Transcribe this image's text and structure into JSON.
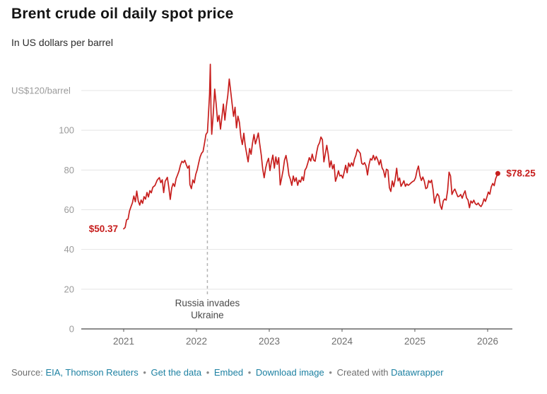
{
  "header": {
    "title": "Brent crude oil daily spot price",
    "subtitle": "In US dollars per barrel"
  },
  "colors": {
    "line": "#c71e1d",
    "link": "#1d81a2",
    "grid": "#e4e4e4",
    "axis": "#1a1a1a",
    "tick_label": "#9a9a9a",
    "year_label": "#6f6f6f",
    "annotation_text": "#4a4a4a"
  },
  "footer": {
    "source_prefix": "Source:",
    "source_link": "EIA, Thomson Reuters",
    "bullet": "•",
    "get_data": "Get the data",
    "embed": "Embed",
    "download": "Download image",
    "created_with": "Created with",
    "datawrapper": "Datawrapper"
  },
  "chart_data": {
    "type": "line",
    "title": "Brent crude oil daily spot price",
    "subtitle": "In US dollars per barrel",
    "xlabel": "",
    "ylabel": "US dollars per barrel",
    "ylim": [
      0,
      128
    ],
    "x_ticks": [
      2021,
      2022,
      2023,
      2024,
      2025,
      2026
    ],
    "y_ticks": [
      0,
      20,
      40,
      60,
      80,
      100
    ],
    "y_top_value": 120,
    "y_top_label": "US$120/barrel",
    "grid": true,
    "legend_position": "none",
    "start_label": "$50.37",
    "start_value": 50.37,
    "end_label": "$78.25",
    "end_value": 78.25,
    "annotation": {
      "x": 2022.15,
      "text": "Russia invades Ukraine",
      "line1": "Russia invades",
      "line2": "Ukraine"
    },
    "series": [
      {
        "name": "Brent crude daily spot price",
        "color": "#c71e1d",
        "points": [
          [
            2021.0,
            50.4
          ],
          [
            2021.02,
            51.1
          ],
          [
            2021.04,
            54.9
          ],
          [
            2021.06,
            55.3
          ],
          [
            2021.08,
            59.3
          ],
          [
            2021.1,
            61.5
          ],
          [
            2021.12,
            63.5
          ],
          [
            2021.14,
            66.9
          ],
          [
            2021.16,
            64.0
          ],
          [
            2021.18,
            69.4
          ],
          [
            2021.2,
            64.5
          ],
          [
            2021.22,
            62.3
          ],
          [
            2021.24,
            64.9
          ],
          [
            2021.26,
            63.2
          ],
          [
            2021.28,
            66.6
          ],
          [
            2021.3,
            65.3
          ],
          [
            2021.32,
            68.7
          ],
          [
            2021.34,
            66.4
          ],
          [
            2021.36,
            69.6
          ],
          [
            2021.38,
            68.5
          ],
          [
            2021.4,
            71.3
          ],
          [
            2021.43,
            72.2
          ],
          [
            2021.46,
            74.9
          ],
          [
            2021.49,
            76.2
          ],
          [
            2021.51,
            73.6
          ],
          [
            2021.53,
            75.1
          ],
          [
            2021.55,
            68.6
          ],
          [
            2021.57,
            74.3
          ],
          [
            2021.6,
            76.3
          ],
          [
            2021.62,
            71.1
          ],
          [
            2021.64,
            65.2
          ],
          [
            2021.66,
            71.0
          ],
          [
            2021.68,
            73.2
          ],
          [
            2021.7,
            71.7
          ],
          [
            2021.72,
            75.7
          ],
          [
            2021.74,
            77.5
          ],
          [
            2021.76,
            79.5
          ],
          [
            2021.78,
            82.4
          ],
          [
            2021.8,
            84.4
          ],
          [
            2021.82,
            83.7
          ],
          [
            2021.84,
            84.9
          ],
          [
            2021.86,
            82.7
          ],
          [
            2021.88,
            80.9
          ],
          [
            2021.9,
            82.2
          ],
          [
            2021.91,
            72.7
          ],
          [
            2021.93,
            70.6
          ],
          [
            2021.95,
            75.0
          ],
          [
            2021.97,
            73.5
          ],
          [
            2021.99,
            77.8
          ],
          [
            2022.01,
            80.0
          ],
          [
            2022.03,
            83.5
          ],
          [
            2022.05,
            86.5
          ],
          [
            2022.07,
            88.4
          ],
          [
            2022.09,
            89.3
          ],
          [
            2022.11,
            93.3
          ],
          [
            2022.13,
            97.9
          ],
          [
            2022.15,
            99.0
          ],
          [
            2022.16,
            105.0
          ],
          [
            2022.18,
            118.1
          ],
          [
            2022.19,
            133.2
          ],
          [
            2022.2,
            109.3
          ],
          [
            2022.21,
            98.0
          ],
          [
            2022.23,
            107.9
          ],
          [
            2022.25,
            120.7
          ],
          [
            2022.27,
            113.5
          ],
          [
            2022.29,
            104.4
          ],
          [
            2022.31,
            107.5
          ],
          [
            2022.33,
            100.6
          ],
          [
            2022.35,
            106.6
          ],
          [
            2022.37,
            113.2
          ],
          [
            2022.39,
            105.1
          ],
          [
            2022.41,
            112.0
          ],
          [
            2022.43,
            117.4
          ],
          [
            2022.45,
            125.8
          ],
          [
            2022.47,
            119.7
          ],
          [
            2022.49,
            113.1
          ],
          [
            2022.51,
            107.0
          ],
          [
            2022.53,
            111.6
          ],
          [
            2022.55,
            101.2
          ],
          [
            2022.57,
            107.1
          ],
          [
            2022.59,
            103.9
          ],
          [
            2022.61,
            96.7
          ],
          [
            2022.63,
            92.8
          ],
          [
            2022.65,
            98.5
          ],
          [
            2022.67,
            92.4
          ],
          [
            2022.69,
            88.0
          ],
          [
            2022.71,
            84.1
          ],
          [
            2022.73,
            90.8
          ],
          [
            2022.75,
            87.9
          ],
          [
            2022.77,
            93.5
          ],
          [
            2022.79,
            97.9
          ],
          [
            2022.81,
            93.1
          ],
          [
            2022.83,
            95.8
          ],
          [
            2022.85,
            98.6
          ],
          [
            2022.87,
            92.9
          ],
          [
            2022.89,
            87.5
          ],
          [
            2022.91,
            80.6
          ],
          [
            2022.93,
            76.1
          ],
          [
            2022.95,
            81.0
          ],
          [
            2022.97,
            83.9
          ],
          [
            2022.99,
            85.9
          ],
          [
            2023.01,
            79.7
          ],
          [
            2023.03,
            84.3
          ],
          [
            2023.05,
            87.5
          ],
          [
            2023.07,
            80.9
          ],
          [
            2023.09,
            86.6
          ],
          [
            2023.11,
            82.8
          ],
          [
            2023.13,
            86.2
          ],
          [
            2023.15,
            72.5
          ],
          [
            2023.17,
            75.9
          ],
          [
            2023.19,
            79.9
          ],
          [
            2023.21,
            85.0
          ],
          [
            2023.23,
            87.3
          ],
          [
            2023.25,
            83.1
          ],
          [
            2023.27,
            77.5
          ],
          [
            2023.29,
            75.3
          ],
          [
            2023.31,
            72.3
          ],
          [
            2023.33,
            77.0
          ],
          [
            2023.35,
            74.2
          ],
          [
            2023.37,
            76.1
          ],
          [
            2023.39,
            72.3
          ],
          [
            2023.41,
            74.9
          ],
          [
            2023.43,
            73.9
          ],
          [
            2023.45,
            76.6
          ],
          [
            2023.47,
            74.7
          ],
          [
            2023.49,
            79.9
          ],
          [
            2023.51,
            81.1
          ],
          [
            2023.53,
            83.6
          ],
          [
            2023.55,
            86.2
          ],
          [
            2023.57,
            84.5
          ],
          [
            2023.59,
            88.0
          ],
          [
            2023.61,
            85.0
          ],
          [
            2023.63,
            84.4
          ],
          [
            2023.65,
            88.8
          ],
          [
            2023.67,
            92.2
          ],
          [
            2023.69,
            93.7
          ],
          [
            2023.71,
            96.6
          ],
          [
            2023.73,
            95.3
          ],
          [
            2023.75,
            84.1
          ],
          [
            2023.77,
            88.1
          ],
          [
            2023.79,
            92.4
          ],
          [
            2023.81,
            87.9
          ],
          [
            2023.83,
            81.4
          ],
          [
            2023.85,
            84.6
          ],
          [
            2023.87,
            80.6
          ],
          [
            2023.89,
            82.8
          ],
          [
            2023.91,
            74.3
          ],
          [
            2023.93,
            76.6
          ],
          [
            2023.95,
            79.6
          ],
          [
            2023.97,
            77.0
          ],
          [
            2023.99,
            77.4
          ],
          [
            2024.01,
            75.9
          ],
          [
            2024.03,
            79.1
          ],
          [
            2024.05,
            82.4
          ],
          [
            2024.07,
            78.6
          ],
          [
            2024.09,
            83.5
          ],
          [
            2024.11,
            81.6
          ],
          [
            2024.13,
            83.6
          ],
          [
            2024.15,
            82.0
          ],
          [
            2024.17,
            85.4
          ],
          [
            2024.19,
            87.4
          ],
          [
            2024.21,
            90.4
          ],
          [
            2024.23,
            89.4
          ],
          [
            2024.25,
            88.4
          ],
          [
            2024.27,
            83.4
          ],
          [
            2024.29,
            82.8
          ],
          [
            2024.31,
            83.7
          ],
          [
            2024.33,
            81.9
          ],
          [
            2024.35,
            77.5
          ],
          [
            2024.37,
            82.6
          ],
          [
            2024.39,
            85.7
          ],
          [
            2024.41,
            85.0
          ],
          [
            2024.43,
            87.4
          ],
          [
            2024.45,
            85.0
          ],
          [
            2024.47,
            86.8
          ],
          [
            2024.49,
            85.1
          ],
          [
            2024.51,
            82.6
          ],
          [
            2024.53,
            85.1
          ],
          [
            2024.55,
            81.1
          ],
          [
            2024.57,
            79.7
          ],
          [
            2024.59,
            76.3
          ],
          [
            2024.61,
            80.4
          ],
          [
            2024.63,
            79.9
          ],
          [
            2024.65,
            71.1
          ],
          [
            2024.67,
            69.2
          ],
          [
            2024.69,
            74.5
          ],
          [
            2024.71,
            71.6
          ],
          [
            2024.73,
            75.4
          ],
          [
            2024.75,
            80.9
          ],
          [
            2024.77,
            74.5
          ],
          [
            2024.79,
            76.0
          ],
          [
            2024.81,
            71.8
          ],
          [
            2024.83,
            73.1
          ],
          [
            2024.85,
            74.6
          ],
          [
            2024.87,
            71.8
          ],
          [
            2024.89,
            73.0
          ],
          [
            2024.91,
            72.3
          ],
          [
            2024.93,
            72.9
          ],
          [
            2024.95,
            73.6
          ],
          [
            2024.97,
            74.2
          ],
          [
            2024.99,
            74.6
          ],
          [
            2025.01,
            76.1
          ],
          [
            2025.03,
            79.8
          ],
          [
            2025.05,
            82.0
          ],
          [
            2025.07,
            77.1
          ],
          [
            2025.09,
            74.7
          ],
          [
            2025.11,
            76.5
          ],
          [
            2025.13,
            74.4
          ],
          [
            2025.15,
            70.6
          ],
          [
            2025.17,
            71.1
          ],
          [
            2025.19,
            74.7
          ],
          [
            2025.21,
            73.6
          ],
          [
            2025.23,
            74.9
          ],
          [
            2025.25,
            70.1
          ],
          [
            2025.27,
            63.3
          ],
          [
            2025.29,
            66.3
          ],
          [
            2025.31,
            68.0
          ],
          [
            2025.33,
            66.9
          ],
          [
            2025.35,
            62.1
          ],
          [
            2025.37,
            60.2
          ],
          [
            2025.39,
            64.4
          ],
          [
            2025.41,
            65.4
          ],
          [
            2025.43,
            64.8
          ],
          [
            2025.45,
            69.8
          ],
          [
            2025.47,
            78.9
          ],
          [
            2025.49,
            77.0
          ],
          [
            2025.51,
            67.7
          ],
          [
            2025.53,
            69.4
          ],
          [
            2025.55,
            70.4
          ],
          [
            2025.57,
            68.5
          ],
          [
            2025.59,
            66.6
          ],
          [
            2025.61,
            66.8
          ],
          [
            2025.63,
            67.7
          ],
          [
            2025.65,
            65.8
          ],
          [
            2025.67,
            67.9
          ],
          [
            2025.69,
            69.5
          ],
          [
            2025.71,
            66.0
          ],
          [
            2025.73,
            64.9
          ],
          [
            2025.75,
            61.0
          ],
          [
            2025.77,
            64.4
          ],
          [
            2025.79,
            63.4
          ],
          [
            2025.81,
            64.8
          ],
          [
            2025.83,
            63.1
          ],
          [
            2025.85,
            62.5
          ],
          [
            2025.87,
            63.4
          ],
          [
            2025.89,
            62.2
          ],
          [
            2025.91,
            61.6
          ],
          [
            2025.93,
            63.0
          ],
          [
            2025.95,
            65.5
          ],
          [
            2025.97,
            64.2
          ],
          [
            2025.99,
            66.4
          ],
          [
            2026.01,
            68.9
          ],
          [
            2026.03,
            67.8
          ],
          [
            2026.05,
            71.5
          ],
          [
            2026.07,
            73.2
          ],
          [
            2026.09,
            72.1
          ],
          [
            2026.11,
            75.6
          ],
          [
            2026.14,
            78.25
          ]
        ]
      }
    ]
  }
}
